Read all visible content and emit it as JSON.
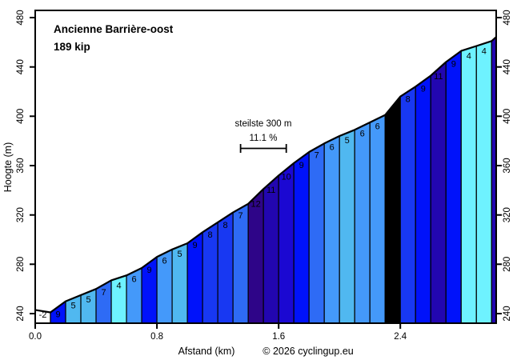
{
  "title": "Ancienne Barrière-oost",
  "subtitle": "189 kip",
  "copyright": "© 2026 cyclingup.eu",
  "axes": {
    "x_label": "Afstand (km)",
    "y_label": "Hoogte (m)",
    "x_ticks_km": [
      0.0,
      0.8,
      1.6,
      2.4
    ],
    "x_tick_labels": [
      "0.0",
      "0.8",
      "1.6",
      "2.4"
    ],
    "y_ticks_m": [
      240,
      280,
      320,
      360,
      400,
      440,
      480
    ],
    "x_range_km": [
      0.0,
      3.03
    ],
    "y_range_m": [
      240,
      480
    ]
  },
  "annotation": {
    "line1": "steilste 300 m",
    "line2": "11.1 %",
    "x_start_km": 1.35,
    "x_end_km": 1.65
  },
  "chart_data": {
    "type": "area",
    "title": "Ancienne Barrière-oost",
    "xlabel": "Afstand (km)",
    "ylabel": "Hoogte (m)",
    "ylim": [
      240,
      480
    ],
    "grid": false,
    "segment_length_km": 0.1,
    "start_elevation_m": 243,
    "gradients_pct": [
      -2,
      9,
      5,
      5,
      7,
      4,
      6,
      9,
      6,
      5,
      9,
      8,
      8,
      7,
      12,
      11,
      10,
      9,
      7,
      6,
      5,
      6,
      6,
      15,
      8,
      9,
      11,
      9,
      4,
      4
    ],
    "final_segment": {
      "length_km": 0.03,
      "gradient_pct": 11
    },
    "end_elevation_m": 464,
    "gradient_colors": {
      "-2": "#FFFFFF",
      "4": "#6EF2FF",
      "5": "#50B8F0",
      "6": "#4499FA",
      "7": "#2E6BF5",
      "8": "#1838F2",
      "9": "#0012FA",
      "10": "#1B08D2",
      "11": "#2206B0",
      "12": "#2E0588",
      "15": "#000000"
    },
    "label_white_threshold_pct": 7,
    "outline_color": "#000000"
  }
}
